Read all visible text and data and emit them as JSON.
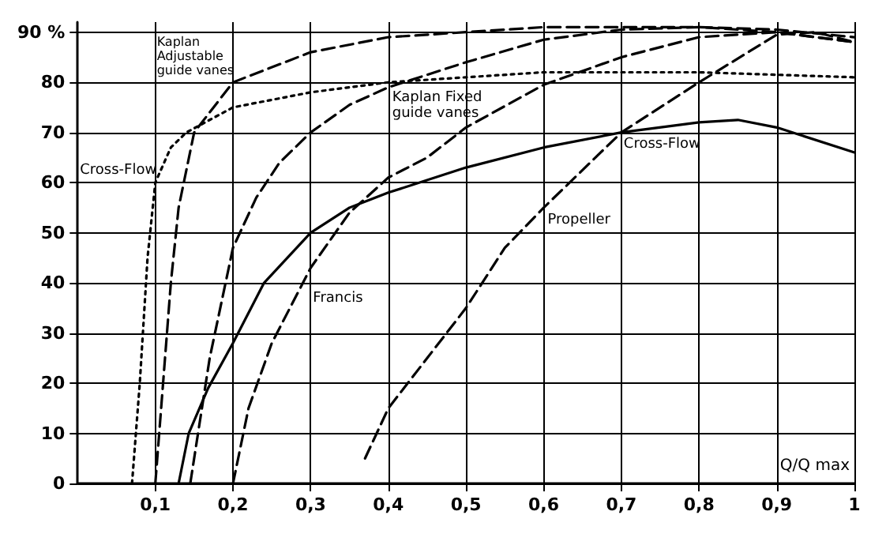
{
  "chart_data": {
    "type": "line",
    "xlim": [
      0,
      1
    ],
    "ylim": [
      0,
      92
    ],
    "xlabel": "Q/Q max",
    "xticks": [
      {
        "value": 0.1,
        "label": "0,1"
      },
      {
        "value": 0.2,
        "label": "0,2"
      },
      {
        "value": 0.3,
        "label": "0,3"
      },
      {
        "value": 0.4,
        "label": "0,4"
      },
      {
        "value": 0.5,
        "label": "0,5"
      },
      {
        "value": 0.6,
        "label": "0,6"
      },
      {
        "value": 0.7,
        "label": "0,7"
      },
      {
        "value": 0.8,
        "label": "0,8"
      },
      {
        "value": 0.9,
        "label": "0,9"
      },
      1
    ],
    "yticks": [
      0,
      10,
      20,
      30,
      40,
      50,
      60,
      70,
      80,
      {
        "value": 90,
        "label": "90 %"
      }
    ],
    "grid": true,
    "legend": false,
    "marker": "none",
    "series": [
      {
        "name": "Cross-Flow",
        "color": "#000000",
        "line_style": "dotted",
        "x": [
          0.07,
          0.08,
          0.09,
          0.1,
          0.12,
          0.14,
          0.2,
          0.3,
          0.4,
          0.5,
          0.6,
          0.7,
          0.8,
          0.9,
          1
        ],
        "values": [
          0,
          20,
          45,
          60,
          67,
          70,
          75,
          78,
          80,
          81,
          82,
          82,
          82,
          81.5,
          81
        ]
      },
      {
        "name": "Kaplan Adjustable guide vanes",
        "color": "#000000",
        "line_style": "dashed",
        "x": [
          0.1,
          0.11,
          0.12,
          0.13,
          0.15,
          0.2,
          0.3,
          0.4,
          0.5,
          0.6,
          0.7,
          0.8,
          0.9,
          1
        ],
        "values": [
          0,
          20,
          40,
          55,
          70,
          80,
          86,
          89,
          90,
          91,
          91,
          91,
          90.5,
          89
        ]
      },
      {
        "name": "Kaplan Fixed guide vanes",
        "color": "#000000",
        "line_style": "dashed",
        "x": [
          0.145,
          0.17,
          0.2,
          0.23,
          0.26,
          0.3,
          0.35,
          0.4,
          0.45,
          0.5,
          0.6,
          0.7,
          0.8,
          0.9,
          1
        ],
        "values": [
          0,
          25,
          47,
          57,
          64,
          70,
          75.5,
          79,
          81.5,
          84,
          88.5,
          90.5,
          91,
          90,
          88
        ]
      },
      {
        "name": "Francis",
        "color": "#000000",
        "line_style": "dashed",
        "x": [
          0.2,
          0.22,
          0.25,
          0.3,
          0.35,
          0.4,
          0.45,
          0.5,
          0.6,
          0.7,
          0.8,
          0.9,
          1
        ],
        "values": [
          0,
          15,
          28,
          43,
          54,
          61,
          65,
          71,
          79.5,
          85,
          89,
          90,
          88
        ]
      },
      {
        "name": "Propeller",
        "color": "#000000",
        "line_style": "dashed",
        "x": [
          0.37,
          0.4,
          0.45,
          0.5,
          0.55,
          0.6,
          0.7,
          0.8,
          0.9,
          0.95,
          1
        ],
        "values": [
          5,
          15,
          25,
          35,
          47,
          55,
          70,
          80,
          89.5,
          90,
          88
        ]
      },
      {
        "name": "Cross-Flow",
        "color": "#000000",
        "line_style": "solid",
        "x": [
          0.13,
          0.143,
          0.168,
          0.2,
          0.24,
          0.3,
          0.35,
          0.4,
          0.5,
          0.6,
          0.7,
          0.8,
          0.85,
          0.9,
          1
        ],
        "values": [
          0,
          10,
          19,
          28,
          40,
          50,
          55,
          58,
          63,
          67,
          70,
          72,
          72.5,
          71,
          66
        ]
      }
    ]
  }
}
